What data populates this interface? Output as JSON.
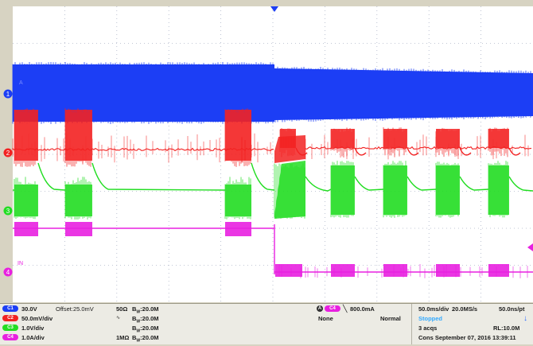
{
  "channels": [
    {
      "id": "C1",
      "scale": "30.0V",
      "offset": "Offset:25.0mV",
      "impedance": "50Ω",
      "bw": "20.0M",
      "color": "#1c3ef5"
    },
    {
      "id": "C2",
      "scale": "50.0mV/div",
      "offset": "",
      "impedance": "",
      "bw": "20.0M",
      "color": "#f22222"
    },
    {
      "id": "C3",
      "scale": "1.0V/div",
      "offset": "",
      "impedance": "",
      "bw": "20.0M",
      "color": "#22dd22"
    },
    {
      "id": "C4",
      "scale": "1.0A/div",
      "offset": "",
      "impedance": "1MΩ",
      "bw": "20.0M",
      "color": "#e820e0"
    }
  ],
  "markers": {
    "c1": "1",
    "c2": "2",
    "c3": "3",
    "c4": "4",
    "c1_label": "A",
    "c4_label": "IN"
  },
  "trigger": {
    "source": "C4",
    "slope": "falling",
    "level": "800.0mA",
    "coupling": "None",
    "mode": "Normal"
  },
  "acquisition": {
    "timebase": "50.0ms/div",
    "sample_rate": "20.0MS/s",
    "resolution": "50.0ns/pt",
    "state": "Stopped",
    "acqs": "3 acqs",
    "record_length": "RL:10.0M",
    "timestamp": "Cons  September 07, 2016  13:39:11"
  },
  "colors": {
    "grid": "#aeb5c8",
    "trigger_marker": "#1c3ef5"
  }
}
